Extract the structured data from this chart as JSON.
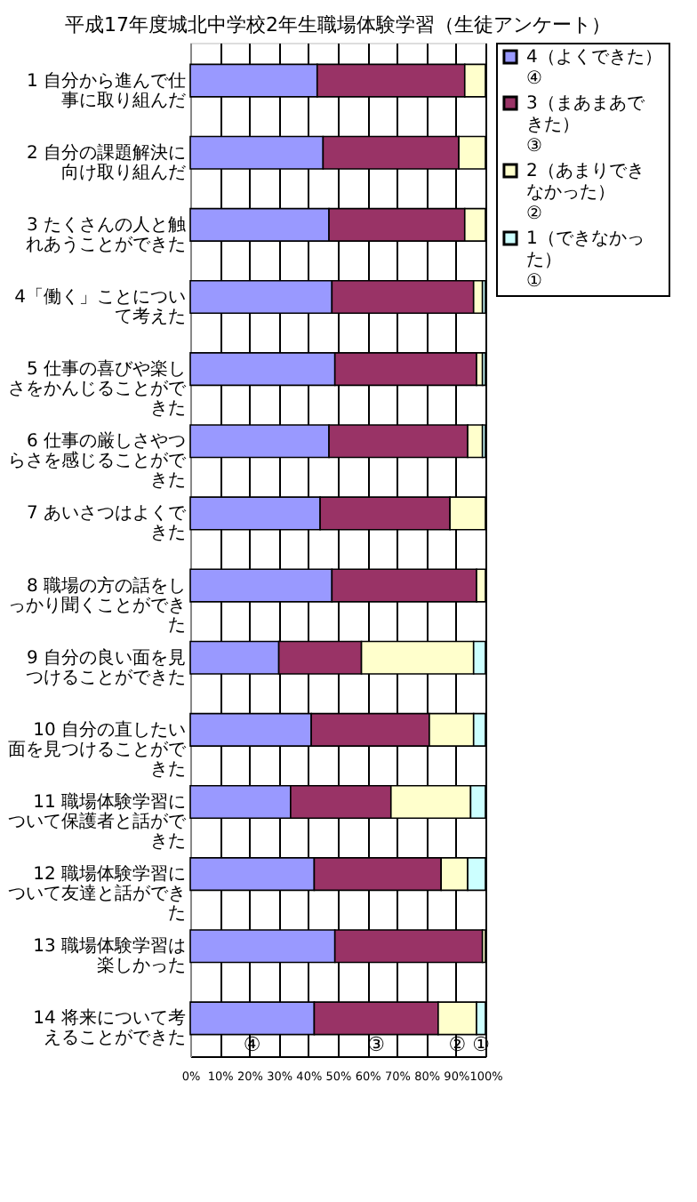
{
  "chart_data": {
    "type": "bar",
    "orientation": "horizontal",
    "stacked": true,
    "title": "平成17年度城北中学校2年生職場体験学習（生徒アンケート）",
    "categories": [
      "1 自分から進んで仕事に取り組んだ",
      "2 自分の課題解決に向け取り組んだ",
      "3 たくさんの人と触れあうことができた",
      "4「働く」ことについて考えた",
      "5 仕事の喜びや楽しさをかんじることができた",
      "6 仕事の厳しさやつらさを感じることができた",
      "7 あいさつはよくできた",
      "8 職場の方の話をしっかり聞くことができた",
      "9 自分の良い面を見つけることができた",
      "10 自分の直したい面を見つけることができた",
      "11 職場体験学習について保護者と話ができた",
      "12 職場体験学習について友達と話ができた",
      "13 職場体験学習は楽しかった",
      "14 将来について考えることができた"
    ],
    "series": [
      {
        "name": "4（よくできた）\n④",
        "color": "#9999ff",
        "values": [
          43,
          45,
          47,
          48,
          49,
          47,
          44,
          48,
          30,
          41,
          34,
          42,
          49,
          42
        ]
      },
      {
        "name": "3（まあまあできた）\n③",
        "color": "#993366",
        "values": [
          50,
          46,
          46,
          48,
          48,
          47,
          44,
          49,
          28,
          40,
          34,
          43,
          50,
          42
        ]
      },
      {
        "name": "2（あまりできなかった）\n②",
        "color": "#ffffcc",
        "values": [
          7,
          9,
          7,
          3,
          2,
          5,
          12,
          3,
          38,
          15,
          27,
          9,
          1,
          13
        ]
      },
      {
        "name": "1（できなかった）\n①",
        "color": "#ccffff",
        "values": [
          0,
          0,
          0,
          1,
          1,
          1,
          0,
          0,
          4,
          4,
          5,
          6,
          0,
          3
        ]
      }
    ],
    "xlim": [
      0,
      100
    ],
    "xticks": [
      {
        "value": 0,
        "label": "0%"
      },
      {
        "value": 10,
        "label": "10%"
      },
      {
        "value": 20,
        "label": "20%"
      },
      {
        "value": 30,
        "label": "30%"
      },
      {
        "value": 40,
        "label": "40%"
      },
      {
        "value": 50,
        "label": "50%"
      },
      {
        "value": 60,
        "label": "60%"
      },
      {
        "value": 70,
        "label": "70%"
      },
      {
        "value": 80,
        "label": "80%"
      },
      {
        "value": 90,
        "label": "90%"
      },
      {
        "value": 100,
        "label": "100%"
      }
    ],
    "grid": "x",
    "legend": "top right",
    "annotations": [
      "④",
      "③",
      "②",
      "①"
    ]
  }
}
